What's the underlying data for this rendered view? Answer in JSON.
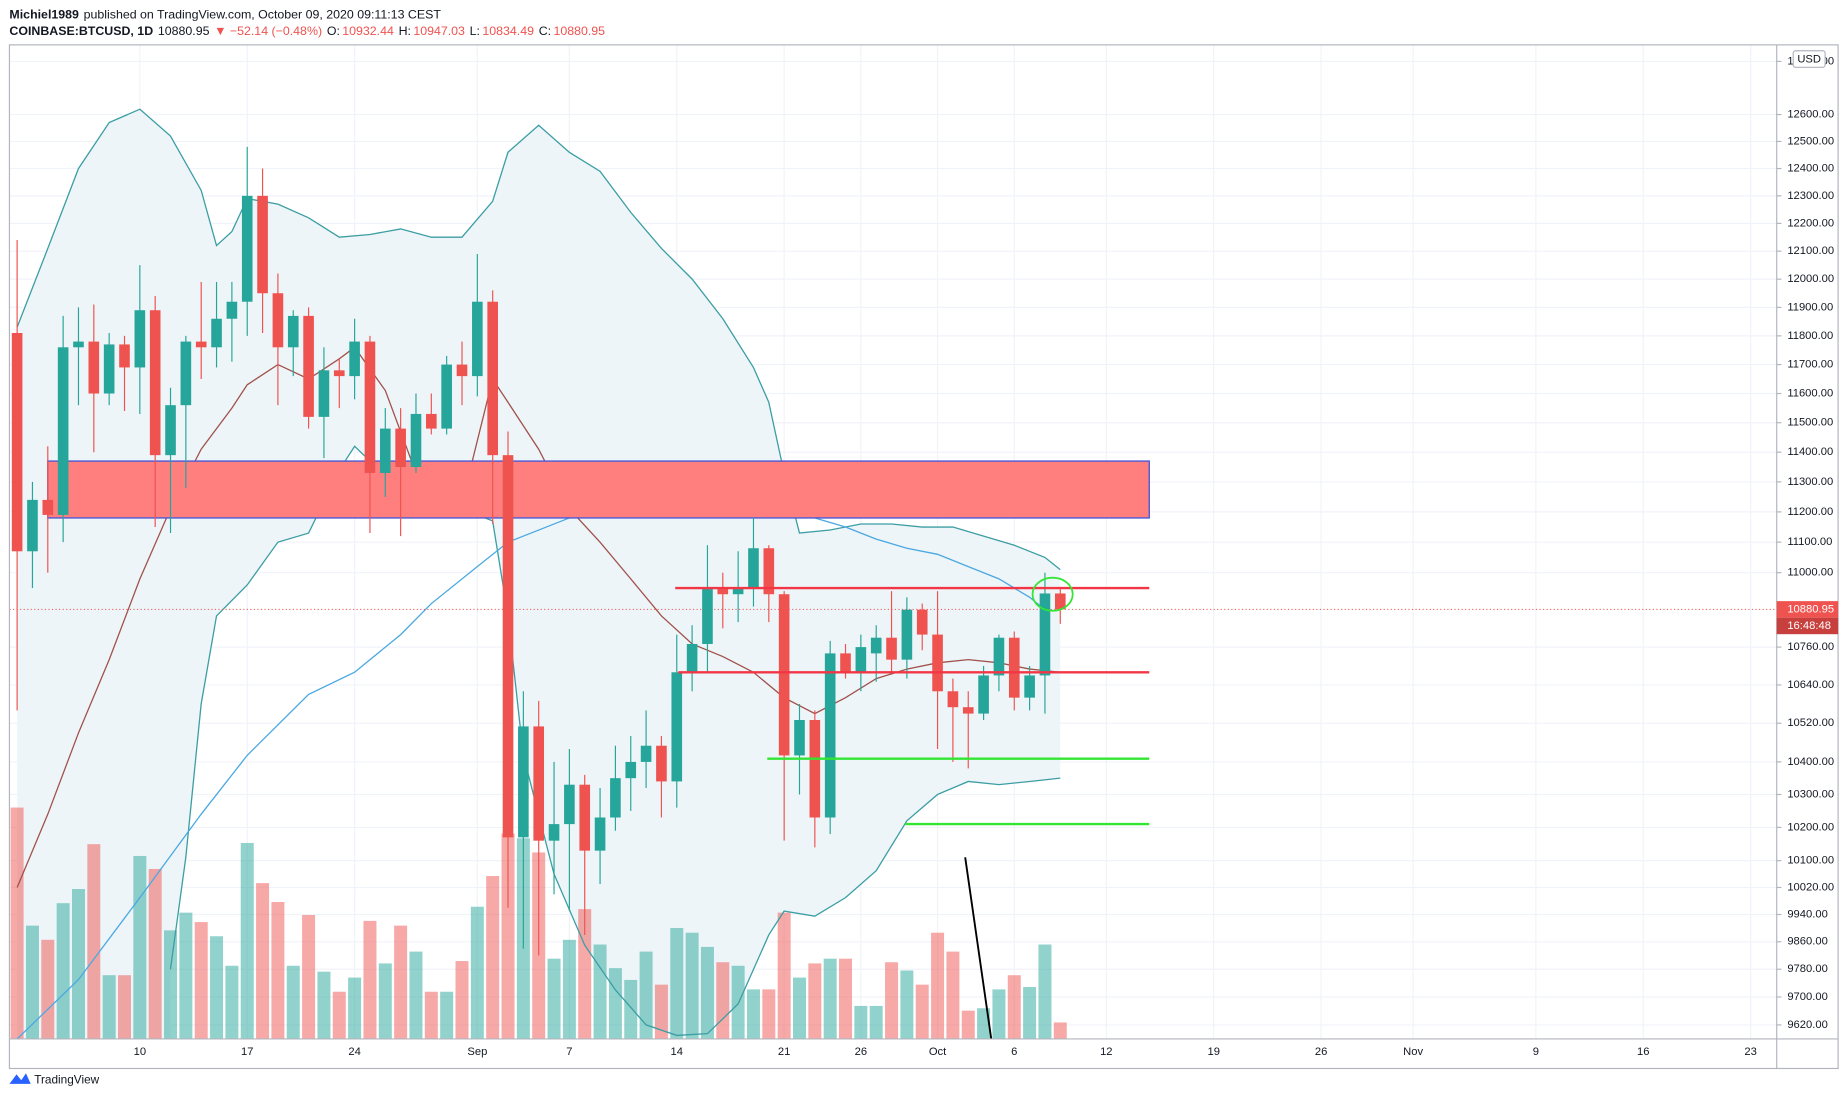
{
  "header": {
    "author": "Michiel1989",
    "published": "published on TradingView.com, October 09, 2020 09:11:13 CEST",
    "symbol": "COINBASE:BTCUSD, 1D",
    "last": "10880.95",
    "change": "▼ −52.14 (−0.48%)",
    "ohlc": [
      "O:",
      "10932.44",
      "H:",
      "10947.03",
      "L:",
      "10834.49",
      "C:",
      "10880.95"
    ]
  },
  "footer": {
    "brand": "TradingView"
  },
  "chart_data": {
    "type": "candlestick",
    "log_scale": true,
    "grid": true,
    "xlim": [
      1.5,
      116.7
    ],
    "ylim": [
      9580,
      12854
    ],
    "xticks": [
      10,
      17,
      24,
      {
        "value": 32,
        "label": "Sep"
      },
      {
        "value": 38,
        "label": "7"
      },
      {
        "value": 45,
        "label": "14"
      },
      {
        "value": 52,
        "label": "21"
      },
      {
        "value": 57,
        "label": "26"
      },
      {
        "value": 62,
        "label": "Oct"
      },
      {
        "value": 67,
        "label": "6"
      },
      {
        "value": 73,
        "label": "12"
      },
      {
        "value": 80,
        "label": "19"
      },
      {
        "value": 87,
        "label": "26"
      },
      {
        "value": 93,
        "label": "Nov"
      },
      {
        "value": 101,
        "label": "9"
      },
      {
        "value": 108,
        "label": "16"
      },
      {
        "value": 115,
        "label": "23"
      }
    ],
    "yticks": [
      {
        "value": 12800,
        "label": "12800.00"
      },
      {
        "value": 12600,
        "label": "12600.00"
      },
      {
        "value": 12500,
        "label": "12500.00"
      },
      {
        "value": 12400,
        "label": "12400.00"
      },
      {
        "value": 12300,
        "label": "12300.00"
      },
      {
        "value": 12200,
        "label": "12200.00"
      },
      {
        "value": 12100,
        "label": "12100.00"
      },
      {
        "value": 12000,
        "label": "12000.00"
      },
      {
        "value": 11900,
        "label": "11900.00"
      },
      {
        "value": 11800,
        "label": "11800.00"
      },
      {
        "value": 11700,
        "label": "11700.00"
      },
      {
        "value": 11600,
        "label": "11600.00"
      },
      {
        "value": 11500,
        "label": "11500.00"
      },
      {
        "value": 11400,
        "label": "11400.00"
      },
      {
        "value": 11300,
        "label": "11300.00"
      },
      {
        "value": 11200,
        "label": "11200.00"
      },
      {
        "value": 11100,
        "label": "11100.00"
      },
      {
        "value": 11000,
        "label": "11000.00"
      },
      {
        "value": 10760,
        "label": "10760.00"
      },
      {
        "value": 10640,
        "label": "10640.00"
      },
      {
        "value": 10520,
        "label": "10520.00"
      },
      {
        "value": 10400,
        "label": "10400.00"
      },
      {
        "value": 10300,
        "label": "10300.00"
      },
      {
        "value": 10200,
        "label": "10200.00"
      },
      {
        "value": 10100,
        "label": "10100.00"
      },
      {
        "value": 10020,
        "label": "10020.00"
      },
      {
        "value": 9940,
        "label": "9940.00"
      },
      {
        "value": 9860,
        "label": "9860.00"
      },
      {
        "value": 9780,
        "label": "9780.00"
      },
      {
        "value": 9700,
        "label": "9700.00"
      },
      {
        "value": 9620,
        "label": "9620.00"
      }
    ],
    "up_color": "#26a69a",
    "down_color": "#ef5350",
    "x": [
      2,
      3,
      4,
      5,
      6,
      7,
      8,
      9,
      10,
      11,
      12,
      13,
      14,
      15,
      16,
      17,
      18,
      19,
      20,
      21,
      22,
      23,
      24,
      25,
      26,
      27,
      28,
      29,
      30,
      31,
      32,
      33,
      34,
      35,
      36,
      37,
      38,
      39,
      40,
      41,
      42,
      43,
      44,
      45,
      46,
      47,
      48,
      49,
      50,
      51,
      52,
      53,
      54,
      55,
      56,
      57,
      58,
      59,
      60,
      61,
      62,
      63,
      64,
      65,
      66,
      67,
      68,
      69,
      70
    ],
    "open": [
      11810,
      11070,
      11240,
      11190,
      11760,
      11780,
      11600,
      11770,
      11690,
      11890,
      11390,
      11560,
      11780,
      11760,
      11860,
      11920,
      12300,
      11950,
      11760,
      11870,
      11520,
      11680,
      11660,
      11780,
      11330,
      11480,
      11350,
      11530,
      11480,
      11700,
      11660,
      11920,
      11390,
      10170,
      10510,
      10160,
      10210,
      10330,
      10130,
      10230,
      10350,
      10400,
      10450,
      10340,
      10680,
      10770,
      10950,
      10930,
      10950,
      11080,
      10930,
      10420,
      10530,
      10230,
      10740,
      10680,
      10740,
      10790,
      10720,
      10880,
      10800,
      10620,
      10570,
      10550,
      10670,
      10790,
      10600,
      10670,
      10932.44
    ],
    "high": [
      12140,
      11300,
      11420,
      11870,
      11900,
      11910,
      11810,
      11800,
      12050,
      11940,
      11620,
      11800,
      11990,
      11990,
      11990,
      12480,
      12400,
      12020,
      11890,
      11900,
      11760,
      11720,
      11860,
      11800,
      11550,
      11550,
      11600,
      11600,
      11730,
      11780,
      12090,
      11960,
      11470,
      10620,
      10590,
      10400,
      10440,
      10360,
      10320,
      10450,
      10480,
      10560,
      10480,
      10800,
      10830,
      11090,
      11000,
      11070,
      11180,
      11090,
      10940,
      10580,
      10560,
      10780,
      10770,
      10800,
      10830,
      10940,
      10920,
      10900,
      10940,
      10660,
      10620,
      10700,
      10800,
      10810,
      10700,
      11000,
      10947.03
    ],
    "low": [
      10560,
      10950,
      11000,
      11100,
      11560,
      11400,
      11560,
      11540,
      11530,
      11150,
      11130,
      11280,
      11650,
      11690,
      11710,
      11800,
      11810,
      11560,
      11660,
      11480,
      11380,
      11550,
      11580,
      11130,
      11250,
      11120,
      11330,
      11460,
      11460,
      11560,
      11590,
      11160,
      9960,
      9840,
      9820,
      10000,
      9950,
      9880,
      10030,
      10190,
      10250,
      10320,
      10230,
      10260,
      10620,
      10680,
      10820,
      10840,
      10890,
      10840,
      10160,
      10300,
      10140,
      10180,
      10660,
      10620,
      10650,
      10680,
      10660,
      10750,
      10440,
      10400,
      10380,
      10530,
      10620,
      10560,
      10560,
      10550,
      10834.49
    ],
    "close": [
      11070,
      11240,
      11190,
      11760,
      11780,
      11600,
      11770,
      11690,
      11890,
      11390,
      11560,
      11780,
      11760,
      11860,
      11920,
      12300,
      11950,
      11760,
      11870,
      11520,
      11680,
      11660,
      11780,
      11330,
      11480,
      11350,
      11530,
      11480,
      11700,
      11660,
      11920,
      11390,
      10170,
      10510,
      10160,
      10210,
      10330,
      10130,
      10230,
      10350,
      10400,
      10450,
      10340,
      10680,
      10770,
      10950,
      10930,
      10950,
      11080,
      10930,
      10420,
      10530,
      10230,
      10740,
      10680,
      10760,
      10790,
      10720,
      10880,
      10800,
      10620,
      10570,
      10550,
      10670,
      10790,
      10600,
      10670,
      10932.44,
      10880.95
    ],
    "volume": {
      "values": [
        196,
        96,
        84,
        115,
        127,
        165,
        54,
        54,
        155,
        144,
        92,
        107,
        99,
        87,
        62,
        166,
        132,
        116,
        62,
        105,
        57,
        40,
        52,
        100,
        64,
        96,
        74,
        40,
        40,
        66,
        112,
        138,
        174,
        170,
        158,
        68,
        84,
        110,
        80,
        60,
        50,
        74,
        46,
        94,
        90,
        78,
        65,
        62,
        42,
        42,
        107,
        52,
        64,
        68,
        68,
        28,
        28,
        65,
        58,
        46,
        90,
        74,
        24,
        26,
        42,
        54,
        44,
        80,
        14
      ],
      "lim": [
        0,
        840
      ]
    },
    "bands": {
      "color": "#3b9ea3",
      "fill": "#eef5f9",
      "x_upper": [
        2,
        4,
        6,
        8,
        10,
        12,
        14,
        15,
        16,
        17,
        19,
        21,
        23,
        25,
        27,
        29,
        31,
        33,
        34,
        36,
        38,
        40,
        42,
        44,
        46,
        48,
        50,
        51,
        52,
        53,
        55,
        57,
        59,
        61,
        63,
        65,
        67,
        69,
        70
      ],
      "upper": [
        11830,
        12110,
        12400,
        12570,
        12620,
        12520,
        12320,
        12120,
        12170,
        12290,
        12270,
        12220,
        12150,
        12160,
        12180,
        12150,
        12150,
        12280,
        12460,
        12560,
        12460,
        12390,
        12240,
        12110,
        12000,
        11860,
        11690,
        11570,
        11330,
        11130,
        11140,
        11160,
        11160,
        11150,
        11150,
        11120,
        11090,
        11050,
        11010
      ],
      "x_lower": [
        12,
        13,
        14,
        15,
        17,
        19,
        21,
        23,
        24,
        25,
        27,
        29,
        31,
        33,
        34,
        35,
        37,
        39,
        41,
        43,
        45,
        47,
        49,
        51,
        52,
        54,
        56,
        58,
        60,
        62,
        64,
        66,
        68,
        70
      ],
      "lower": [
        9780,
        10110,
        10580,
        10860,
        10960,
        11100,
        11130,
        11340,
        11420,
        11370,
        11300,
        11210,
        11210,
        11170,
        10860,
        10420,
        10060,
        9850,
        9720,
        9620,
        9590,
        9595,
        9680,
        9880,
        9950,
        9935,
        9990,
        10070,
        10220,
        10300,
        10340,
        10330,
        10340,
        10350
      ]
    },
    "basis": {
      "color": "#a0524b",
      "x": [
        2,
        4,
        6,
        8,
        10,
        12,
        14,
        16,
        17,
        19,
        21,
        23,
        24,
        26,
        28,
        29,
        31,
        33,
        34,
        36,
        38,
        40,
        42,
        44,
        46,
        48,
        50,
        52,
        54,
        56,
        58,
        60,
        62,
        64,
        66,
        68,
        70
      ],
      "values": [
        10020,
        10240,
        10490,
        10720,
        10980,
        11210,
        11410,
        11550,
        11630,
        11700,
        11650,
        11720,
        11760,
        11610,
        11330,
        11210,
        11230,
        11650,
        11570,
        11410,
        11210,
        11100,
        10980,
        10860,
        10770,
        10730,
        10680,
        10600,
        10550,
        10600,
        10660,
        10690,
        10710,
        10720,
        10710,
        10690,
        10680
      ]
    },
    "ma": {
      "color": "#4aa8e0",
      "x": [
        2,
        6,
        10,
        14,
        17,
        21,
        24,
        27,
        29,
        32,
        34,
        38,
        42,
        44,
        48,
        52,
        56,
        58,
        60,
        62,
        64,
        66,
        68,
        69
      ],
      "values": [
        9580,
        9750,
        9990,
        10240,
        10420,
        10610,
        10680,
        10800,
        10900,
        11020,
        11100,
        11180,
        11260,
        11280,
        11280,
        11210,
        11150,
        11110,
        11080,
        11060,
        11020,
        10980,
        10920,
        10880
      ]
    },
    "zone": {
      "x": [
        4,
        75.8
      ],
      "y": [
        11180,
        11370
      ],
      "color": "#ff7f7f",
      "border": "#4f5bd5"
    },
    "levels": [
      {
        "x": [
          44.9,
          75.8
        ],
        "value": 10950,
        "color": "#f23645"
      },
      {
        "x": [
          45.1,
          75.8
        ],
        "value": 10680,
        "color": "#f23645"
      },
      {
        "x": [
          50.9,
          75.8
        ],
        "value": 10410,
        "color": "#33e633"
      },
      {
        "x": [
          59.9,
          75.8
        ],
        "value": 10210,
        "color": "#33e633"
      }
    ],
    "trend_line": {
      "x": [
        63.8,
        65.5
      ],
      "y": [
        10110,
        9580
      ],
      "color": "#000000"
    },
    "highlight": {
      "x": 69.5,
      "y": 10930,
      "color": "#33e633"
    },
    "last_price": 10880.95,
    "countdown": "16:48:48",
    "currency": "USD"
  }
}
